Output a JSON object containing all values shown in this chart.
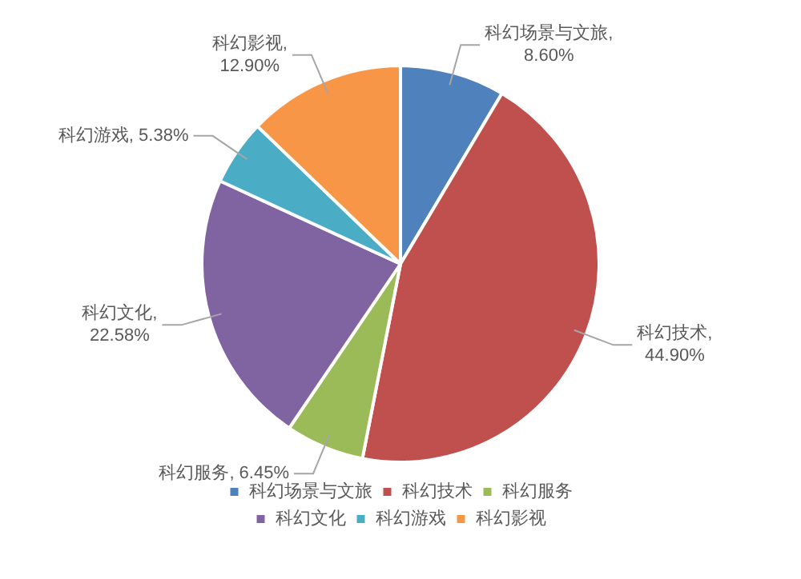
{
  "chart_data": {
    "type": "pie",
    "categories": [
      "科幻场景与文旅",
      "科幻技术",
      "科幻服务",
      "科幻文化",
      "科幻游戏",
      "科幻影视"
    ],
    "values": [
      8.6,
      44.9,
      6.45,
      22.58,
      5.38,
      12.9
    ],
    "value_labels": [
      "科幻场景与文旅,\n8.60%",
      "科幻技术,\n44.90%",
      "科幻服务, 6.45%",
      "科幻文化,\n22.58%",
      "科幻游戏, 5.38%",
      "科幻影视,\n12.90%"
    ],
    "colors": [
      "#4f81bd",
      "#c0504d",
      "#9bbb59",
      "#8064a2",
      "#4bacc6",
      "#f79646"
    ],
    "legend": "bottom"
  }
}
